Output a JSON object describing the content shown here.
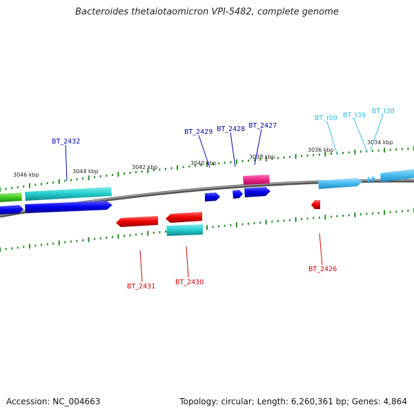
{
  "title": "Bacteroides thetaiotaomicron VPI-5482, complete genome",
  "footer": {
    "accession": "Accession: NC_004663",
    "summary": "Topology: circular; Length: 6,260,361 bp; Genes: 4,864"
  },
  "scale_labels": [
    "3046 kbp",
    "3044 kbp",
    "3042 kbp",
    "3040 kbp",
    "3038 kbp",
    "3036 kbp",
    "3034 kbp"
  ],
  "gene_labels": {
    "bt2432": "BT_2432",
    "bt2429": "BT_2429",
    "bt2428": "BT_2428",
    "bt2427": "BT_2427",
    "btr09": "BT_r09",
    "btt39": "BT_t39",
    "btt38": "BT_t38",
    "bt2431": "BT_2431",
    "bt2430": "BT_2430",
    "bt2426": "BT_2426"
  },
  "colors": {
    "blue": "#0000ee",
    "red": "#ee0000",
    "cyan": "#22cccc",
    "light_blue": "#44bbee",
    "pink": "#ee2288",
    "green": "#44cc22",
    "tick_green": "#228822",
    "label_blue": "#0000aa",
    "label_red": "#cc0000",
    "label_cyan": "#33bbdd",
    "backbone": "#777777"
  }
}
